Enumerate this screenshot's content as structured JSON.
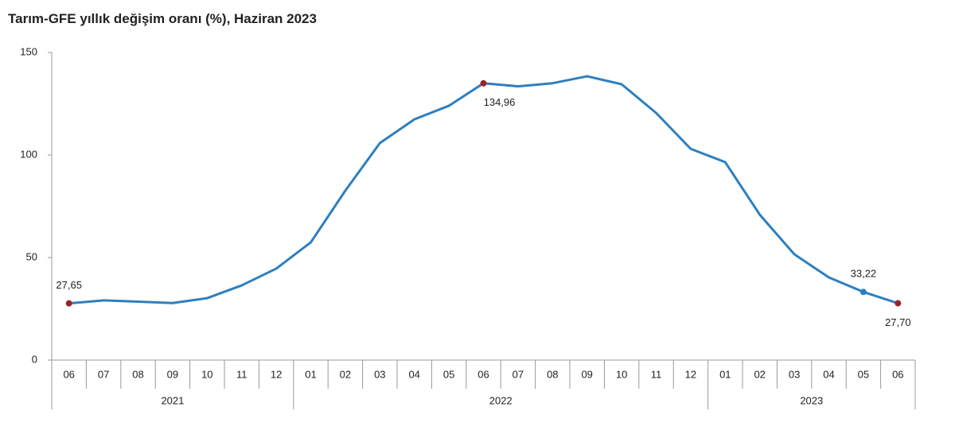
{
  "chart_data": {
    "type": "line",
    "title": "Tarım-GFE yıllık değişim oranı (%), Haziran 2023",
    "categories": [
      "06",
      "07",
      "08",
      "09",
      "10",
      "11",
      "12",
      "01",
      "02",
      "03",
      "04",
      "05",
      "06",
      "07",
      "08",
      "09",
      "10",
      "11",
      "12",
      "01",
      "02",
      "03",
      "04",
      "05",
      "06"
    ],
    "years": [
      "2021",
      "2021",
      "2021",
      "2021",
      "2021",
      "2021",
      "2021",
      "2022",
      "2022",
      "2022",
      "2022",
      "2022",
      "2022",
      "2022",
      "2022",
      "2022",
      "2022",
      "2022",
      "2022",
      "2023",
      "2023",
      "2023",
      "2023",
      "2023",
      "2023"
    ],
    "series": [
      {
        "name": "Tarım-GFE",
        "color": "#2e7fbf",
        "values": [
          27.65,
          29.1,
          28.5,
          27.8,
          30.2,
          36.4,
          44.6,
          57.4,
          82.6,
          105.8,
          117.4,
          124,
          134.96,
          133.5,
          135,
          138.4,
          134.5,
          120.5,
          103,
          96.5,
          70.9,
          51.6,
          40.3,
          33.22,
          27.7
        ],
        "value_labels": [
          "27,65",
          null,
          null,
          null,
          null,
          null,
          null,
          null,
          null,
          null,
          null,
          null,
          "134,96",
          null,
          null,
          null,
          null,
          null,
          null,
          null,
          null,
          null,
          null,
          "33,22",
          "27,70"
        ],
        "marker_colors": [
          "#9b2226",
          null,
          null,
          null,
          null,
          null,
          null,
          null,
          null,
          null,
          null,
          null,
          "#9b2226",
          null,
          null,
          null,
          null,
          null,
          null,
          null,
          null,
          null,
          null,
          "#2e7fbf",
          "#9b2226"
        ]
      }
    ],
    "ylim": [
      0,
      150
    ],
    "yticks": [
      0,
      50,
      100,
      150
    ],
    "grid": false
  }
}
